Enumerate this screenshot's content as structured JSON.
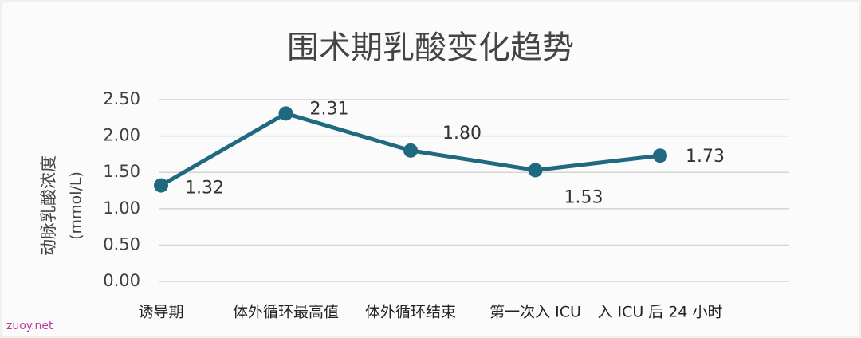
{
  "chart_data": {
    "type": "line",
    "title": "围术期乳酸变化趋势",
    "y_label": [
      "动脉乳酸浓度",
      "(mmol/L)"
    ],
    "watermark": "zuoy.net",
    "categories": [
      "诱导期",
      "体外循环最高值",
      "体外循环结束",
      "第一次入 ICU",
      "入 ICU 后 24 小时"
    ],
    "values": [
      1.32,
      2.31,
      1.8,
      1.53,
      1.73
    ],
    "value_labels": [
      "1.32",
      "2.31",
      "1.80",
      "1.53",
      "1.73"
    ],
    "color": "#1f6a80",
    "ylim": [
      0,
      2.5
    ],
    "yticks": [
      {
        "value": 0,
        "label": "0.00"
      },
      {
        "value": 0.5,
        "label": "0.50"
      },
      {
        "value": 1,
        "label": "1.00"
      },
      {
        "value": 1.5,
        "label": "1.50"
      },
      {
        "value": 2,
        "label": "2.00"
      },
      {
        "value": 2.5,
        "label": "2.50"
      }
    ],
    "grid": true
  }
}
